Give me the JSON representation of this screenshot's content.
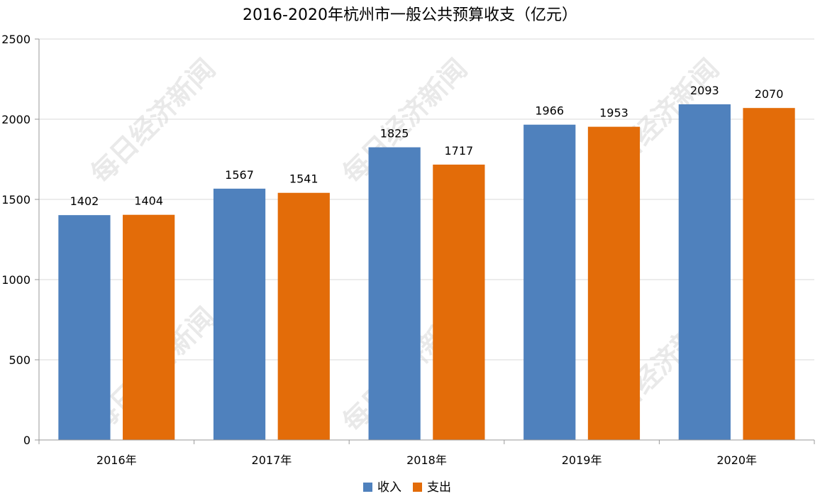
{
  "chart_data": {
    "type": "bar",
    "title": "2016-2020年杭州市一般公共预算收支（亿元）",
    "categories": [
      "2016年",
      "2017年",
      "2018年",
      "2019年",
      "2020年"
    ],
    "series": [
      {
        "name": "收入",
        "values": [
          1402,
          1567,
          1825,
          1966,
          2093
        ],
        "color": "#4f81bd"
      },
      {
        "name": "支出",
        "values": [
          1404,
          1541,
          1717,
          1953,
          2070
        ],
        "color": "#e36c09"
      }
    ],
    "ylim": [
      0,
      2500
    ],
    "yticks": [
      0,
      500,
      1000,
      1500,
      2000,
      2500
    ],
    "grid": true,
    "legend_position": "bottom",
    "watermark": "每日经济新闻"
  }
}
